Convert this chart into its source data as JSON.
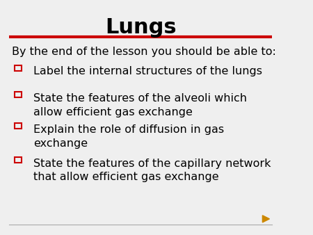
{
  "title": "Lungs",
  "background_color": "#efefef",
  "title_color": "#000000",
  "title_fontsize": 22,
  "red_line_color": "#cc0000",
  "gray_line_color": "#aaaaaa",
  "intro_text": "By the end of the lesson you should be able to:",
  "bullet_items": [
    "Label the internal structures of the lungs",
    "State the features of the alveoli which\nallow efficient gas exchange",
    "Explain the role of diffusion in gas\nexchange",
    "State the features of the capillary network\nthat allow efficient gas exchange"
  ],
  "text_color": "#000000",
  "text_fontsize": 11.5,
  "checkbox_color": "#cc0000",
  "speaker_icon_color": "#cc8800"
}
